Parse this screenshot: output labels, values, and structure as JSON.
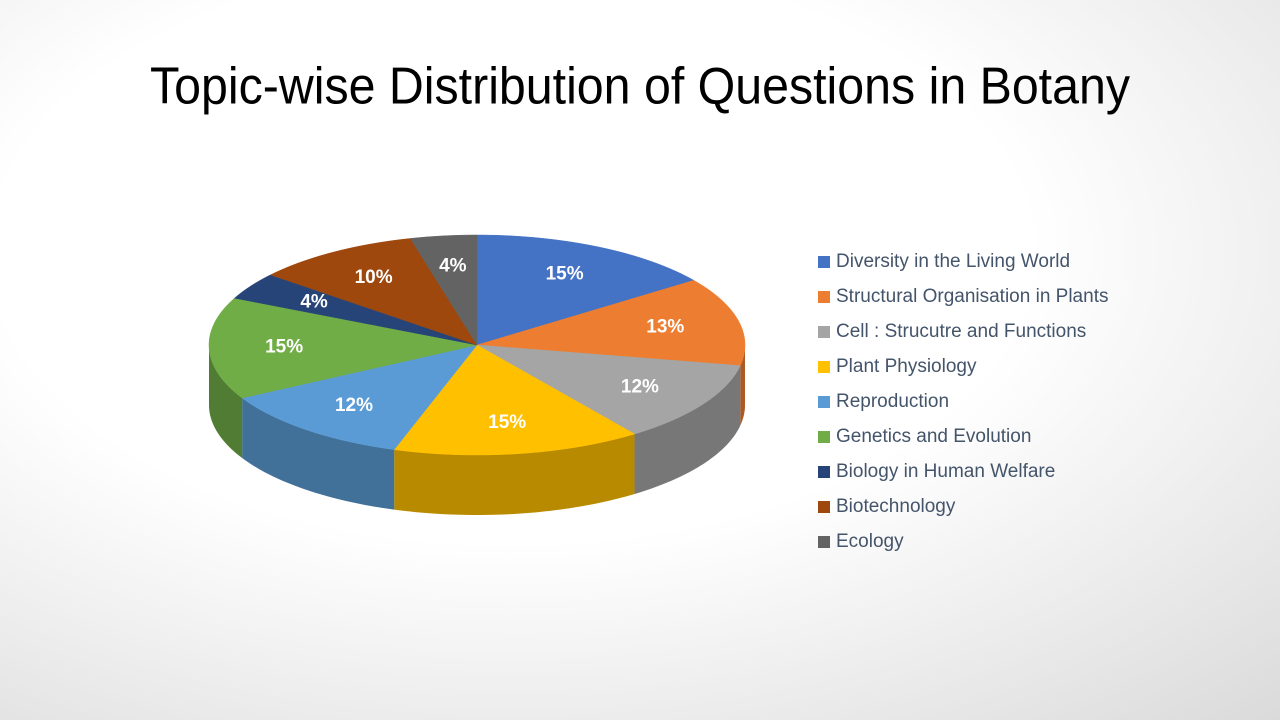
{
  "chart_data": {
    "type": "pie",
    "title": "Topic-wise Distribution of Questions in Botany",
    "categories": [
      "Diversity in the Living World",
      "Structural Organisation in Plants",
      "Cell : Strucutre and Functions",
      "Plant Physiology",
      "Reproduction",
      "Genetics and Evolution",
      "Biology in Human Welfare",
      "Biotechnology",
      "Ecology"
    ],
    "values": [
      15,
      13,
      12,
      15,
      12,
      15,
      4,
      10,
      4
    ],
    "value_labels": [
      "15%",
      "13%",
      "12%",
      "15%",
      "12%",
      "15%",
      "4%",
      "10%",
      "4%"
    ],
    "colors": [
      "#4472c4",
      "#ed7d31",
      "#a5a5a5",
      "#ffc000",
      "#5b9bd5",
      "#70ad47",
      "#264478",
      "#9e480e",
      "#636363"
    ],
    "legend": "right"
  }
}
